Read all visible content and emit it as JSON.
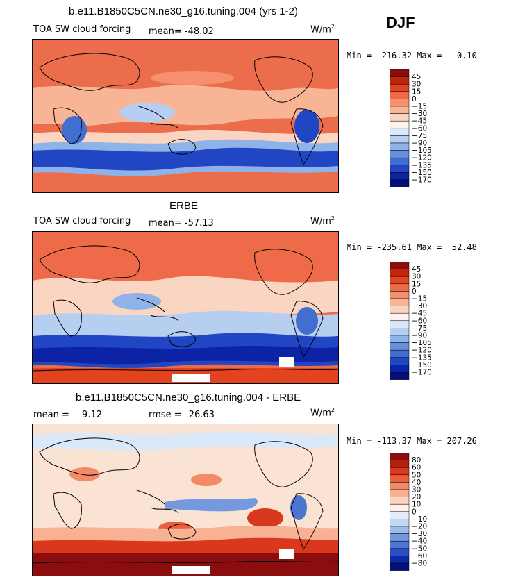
{
  "season": "DJF",
  "units": "W/m",
  "units_sup": "2",
  "panels": [
    {
      "id": "model",
      "title": "b.e11.B1850C5CN.ne30_g16.tuning.004 (yrs 1-2)",
      "variable": "TOA SW cloud forcing",
      "mean_label": "mean=",
      "mean_value": "-48.02",
      "minmax": "Min = -216.32 Max =   0.10",
      "base_color": "#ec6d4c"
    },
    {
      "id": "obs",
      "title": "ERBE",
      "variable": "TOA SW cloud forcing",
      "mean_label": "mean=",
      "mean_value": "-57.13",
      "minmax": "Min = -235.61 Max =  52.48",
      "base_color": "#ef6a48"
    },
    {
      "id": "diff",
      "title": "b.e11.B1850C5CN.ne30_g16.tuning.004 - ERBE",
      "mean_label": "mean =",
      "mean_value": "9.12",
      "rmse_label": "rmse =",
      "rmse_value": "26.63",
      "minmax": "Min = -113.37 Max = 207.26",
      "base_color": "#fbe3d4"
    }
  ],
  "chart_data": [
    {
      "type": "heatmap",
      "title": "b.e11.B1850C5CN.ne30_g16.tuning.004 (yrs 1-2)",
      "variable": "TOA SW cloud forcing",
      "season": "DJF",
      "units": "W/m2",
      "mean": -48.02,
      "min": -216.32,
      "max": 0.1,
      "colorbar_levels": [
        45,
        30,
        15,
        0,
        -15,
        -30,
        -45,
        -60,
        -75,
        -90,
        -105,
        -120,
        -135,
        -150,
        -170
      ],
      "colorbar_labels": [
        "45",
        "30",
        "15",
        "0",
        "−15",
        "−30",
        "−45",
        "−60",
        "−75",
        "−90",
        "−105",
        "−120",
        "−135",
        "−150",
        "−170"
      ],
      "colors": [
        "#8b0d0d",
        "#c0260e",
        "#e3431f",
        "#ef6a48",
        "#f5916f",
        "#f8b596",
        "#fad6c2",
        "#fdf3ec",
        "#dbe8f7",
        "#b6cff0",
        "#8fb3e8",
        "#6791dd",
        "#426ed2",
        "#2046c4",
        "#0d23a6",
        "#040f7a"
      ]
    },
    {
      "type": "heatmap",
      "title": "ERBE",
      "variable": "TOA SW cloud forcing",
      "season": "DJF",
      "units": "W/m2",
      "mean": -57.13,
      "min": -235.61,
      "max": 52.48,
      "colorbar_levels": [
        45,
        30,
        15,
        0,
        -15,
        -30,
        -45,
        -60,
        -75,
        -90,
        -105,
        -120,
        -135,
        -150,
        -170
      ],
      "colorbar_labels": [
        "45",
        "30",
        "15",
        "0",
        "−15",
        "−30",
        "−45",
        "−60",
        "−75",
        "−90",
        "−105",
        "−120",
        "−135",
        "−150",
        "−170"
      ],
      "colors": [
        "#8b0d0d",
        "#c0260e",
        "#e3431f",
        "#ef6a48",
        "#f5916f",
        "#f8b596",
        "#fad6c2",
        "#fdf3ec",
        "#dbe8f7",
        "#b6cff0",
        "#8fb3e8",
        "#6791dd",
        "#426ed2",
        "#2046c4",
        "#0d23a6",
        "#040f7a"
      ]
    },
    {
      "type": "heatmap",
      "title": "b.e11.B1850C5CN.ne30_g16.tuning.004 - ERBE",
      "season": "DJF",
      "units": "W/m2",
      "mean": 9.12,
      "rmse": 26.63,
      "min": -113.37,
      "max": 207.26,
      "colorbar_levels": [
        80,
        60,
        50,
        40,
        30,
        20,
        10,
        0,
        -10,
        -20,
        -30,
        -40,
        -50,
        -60,
        -80
      ],
      "colorbar_labels": [
        "80",
        "60",
        "50",
        "40",
        "30",
        "20",
        "10",
        "0",
        "−10",
        "−20",
        "−30",
        "−40",
        "−50",
        "−60",
        "−80"
      ],
      "colors": [
        "#8b0d0d",
        "#b81e0f",
        "#d9381c",
        "#ec5f3d",
        "#f48b68",
        "#f8b193",
        "#fbd3bf",
        "#fdf0e8",
        "#e4eef9",
        "#c3d7f2",
        "#9dbce9",
        "#7599df",
        "#4d76d3",
        "#2a4fc4",
        "#102aa8",
        "#04117c"
      ]
    }
  ]
}
